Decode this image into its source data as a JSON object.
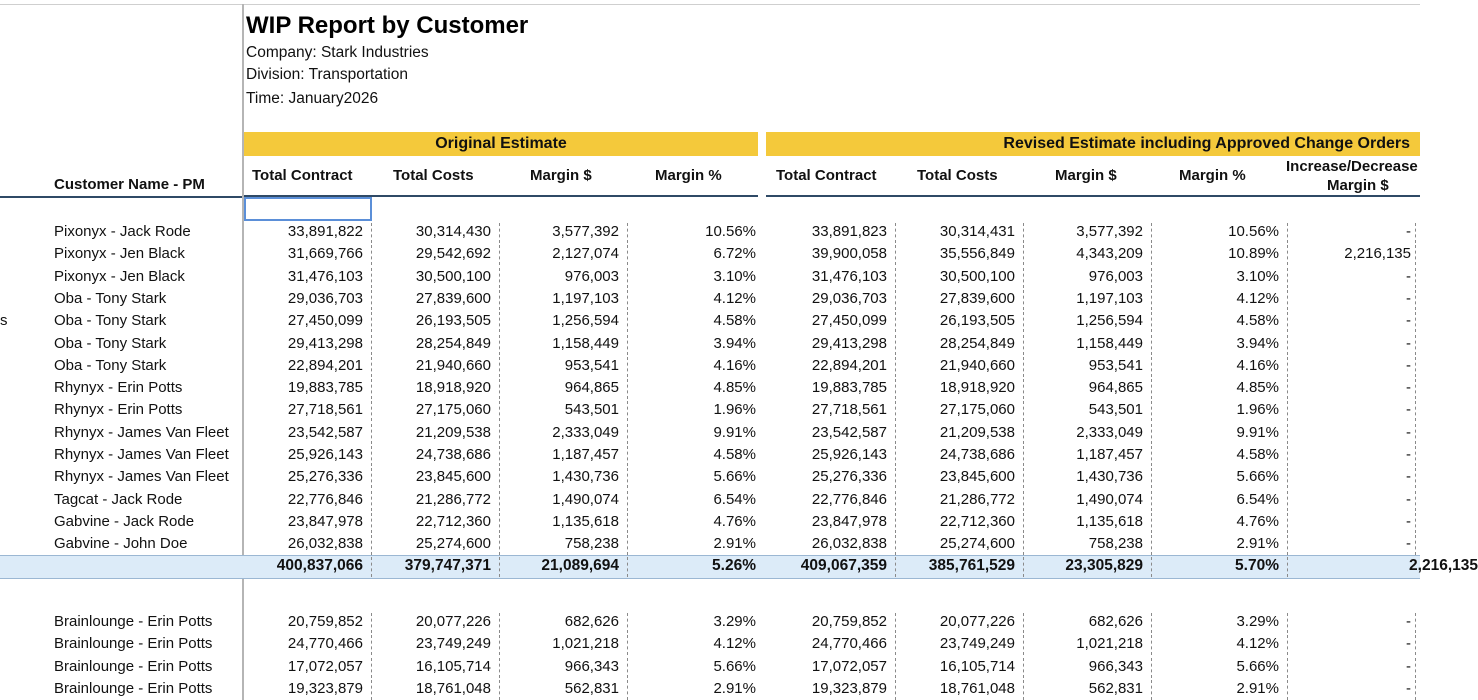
{
  "report": {
    "title": "WIP Report by Customer",
    "company": "Company: Stark Industries",
    "division": "Division: Transportation",
    "time": "Time: January2026"
  },
  "headers": {
    "group_original": "Original Estimate",
    "group_revised": "Revised Estimate including Approved Change Orders",
    "customer_name": "Customer Name - PM",
    "total_contract": "Total Contract",
    "total_costs": "Total Costs",
    "margin_dollar": "Margin $",
    "margin_pct": "Margin %",
    "increase_line1": "Increase/Decrease",
    "increase_line2": "Margin $"
  },
  "left_edge_fragment": "s",
  "group1_rows": [
    {
      "name": "Pixonyx - Jack Rode",
      "o_contract": "33,891,822",
      "o_costs": "30,314,430",
      "o_margin": "3,577,392",
      "o_pct": "10.56%",
      "r_contract": "33,891,823",
      "r_costs": "30,314,431",
      "r_margin": "3,577,392",
      "r_pct": "10.56%",
      "inc": "-"
    },
    {
      "name": "Pixonyx - Jen Black",
      "o_contract": "31,669,766",
      "o_costs": "29,542,692",
      "o_margin": "2,127,074",
      "o_pct": "6.72%",
      "r_contract": "39,900,058",
      "r_costs": "35,556,849",
      "r_margin": "4,343,209",
      "r_pct": "10.89%",
      "inc": "2,216,135"
    },
    {
      "name": "Pixonyx - Jen Black",
      "o_contract": "31,476,103",
      "o_costs": "30,500,100",
      "o_margin": "976,003",
      "o_pct": "3.10%",
      "r_contract": "31,476,103",
      "r_costs": "30,500,100",
      "r_margin": "976,003",
      "r_pct": "3.10%",
      "inc": "-"
    },
    {
      "name": "Oba - Tony Stark",
      "o_contract": "29,036,703",
      "o_costs": "27,839,600",
      "o_margin": "1,197,103",
      "o_pct": "4.12%",
      "r_contract": "29,036,703",
      "r_costs": "27,839,600",
      "r_margin": "1,197,103",
      "r_pct": "4.12%",
      "inc": "-"
    },
    {
      "name": "Oba - Tony Stark",
      "o_contract": "27,450,099",
      "o_costs": "26,193,505",
      "o_margin": "1,256,594",
      "o_pct": "4.58%",
      "r_contract": "27,450,099",
      "r_costs": "26,193,505",
      "r_margin": "1,256,594",
      "r_pct": "4.58%",
      "inc": "-"
    },
    {
      "name": "Oba - Tony Stark",
      "o_contract": "29,413,298",
      "o_costs": "28,254,849",
      "o_margin": "1,158,449",
      "o_pct": "3.94%",
      "r_contract": "29,413,298",
      "r_costs": "28,254,849",
      "r_margin": "1,158,449",
      "r_pct": "3.94%",
      "inc": "-"
    },
    {
      "name": "Oba - Tony Stark",
      "o_contract": "22,894,201",
      "o_costs": "21,940,660",
      "o_margin": "953,541",
      "o_pct": "4.16%",
      "r_contract": "22,894,201",
      "r_costs": "21,940,660",
      "r_margin": "953,541",
      "r_pct": "4.16%",
      "inc": "-"
    },
    {
      "name": "Rhynyx - Erin Potts",
      "o_contract": "19,883,785",
      "o_costs": "18,918,920",
      "o_margin": "964,865",
      "o_pct": "4.85%",
      "r_contract": "19,883,785",
      "r_costs": "18,918,920",
      "r_margin": "964,865",
      "r_pct": "4.85%",
      "inc": "-"
    },
    {
      "name": "Rhynyx - Erin Potts",
      "o_contract": "27,718,561",
      "o_costs": "27,175,060",
      "o_margin": "543,501",
      "o_pct": "1.96%",
      "r_contract": "27,718,561",
      "r_costs": "27,175,060",
      "r_margin": "543,501",
      "r_pct": "1.96%",
      "inc": "-"
    },
    {
      "name": "Rhynyx - James Van Fleet",
      "o_contract": "23,542,587",
      "o_costs": "21,209,538",
      "o_margin": "2,333,049",
      "o_pct": "9.91%",
      "r_contract": "23,542,587",
      "r_costs": "21,209,538",
      "r_margin": "2,333,049",
      "r_pct": "9.91%",
      "inc": "-"
    },
    {
      "name": "Rhynyx - James Van Fleet",
      "o_contract": "25,926,143",
      "o_costs": "24,738,686",
      "o_margin": "1,187,457",
      "o_pct": "4.58%",
      "r_contract": "25,926,143",
      "r_costs": "24,738,686",
      "r_margin": "1,187,457",
      "r_pct": "4.58%",
      "inc": "-"
    },
    {
      "name": "Rhynyx - James Van Fleet",
      "o_contract": "25,276,336",
      "o_costs": "23,845,600",
      "o_margin": "1,430,736",
      "o_pct": "5.66%",
      "r_contract": "25,276,336",
      "r_costs": "23,845,600",
      "r_margin": "1,430,736",
      "r_pct": "5.66%",
      "inc": "-"
    },
    {
      "name": "Tagcat - Jack Rode",
      "o_contract": "22,776,846",
      "o_costs": "21,286,772",
      "o_margin": "1,490,074",
      "o_pct": "6.54%",
      "r_contract": "22,776,846",
      "r_costs": "21,286,772",
      "r_margin": "1,490,074",
      "r_pct": "6.54%",
      "inc": "-"
    },
    {
      "name": "Gabvine - Jack Rode",
      "o_contract": "23,847,978",
      "o_costs": "22,712,360",
      "o_margin": "1,135,618",
      "o_pct": "4.76%",
      "r_contract": "23,847,978",
      "r_costs": "22,712,360",
      "r_margin": "1,135,618",
      "r_pct": "4.76%",
      "inc": "-"
    },
    {
      "name": "Gabvine - John Doe",
      "o_contract": "26,032,838",
      "o_costs": "25,274,600",
      "o_margin": "758,238",
      "o_pct": "2.91%",
      "r_contract": "26,032,838",
      "r_costs": "25,274,600",
      "r_margin": "758,238",
      "r_pct": "2.91%",
      "inc": "-"
    }
  ],
  "group1_total": {
    "o_contract": "400,837,066",
    "o_costs": "379,747,371",
    "o_margin": "21,089,694",
    "o_pct": "5.26%",
    "r_contract": "409,067,359",
    "r_costs": "385,761,529",
    "r_margin": "23,305,829",
    "r_pct": "5.70%",
    "inc": "2,216,135"
  },
  "group2_rows": [
    {
      "name": "Brainlounge - Erin Potts",
      "o_contract": "20,759,852",
      "o_costs": "20,077,226",
      "o_margin": "682,626",
      "o_pct": "3.29%",
      "r_contract": "20,759,852",
      "r_costs": "20,077,226",
      "r_margin": "682,626",
      "r_pct": "3.29%",
      "inc": "-"
    },
    {
      "name": "Brainlounge - Erin Potts",
      "o_contract": "24,770,466",
      "o_costs": "23,749,249",
      "o_margin": "1,021,218",
      "o_pct": "4.12%",
      "r_contract": "24,770,466",
      "r_costs": "23,749,249",
      "r_margin": "1,021,218",
      "r_pct": "4.12%",
      "inc": "-"
    },
    {
      "name": "Brainlounge - Erin Potts",
      "o_contract": "17,072,057",
      "o_costs": "16,105,714",
      "o_margin": "966,343",
      "o_pct": "5.66%",
      "r_contract": "17,072,057",
      "r_costs": "16,105,714",
      "r_margin": "966,343",
      "r_pct": "5.66%",
      "inc": "-"
    },
    {
      "name": "Brainlounge - Erin Potts",
      "o_contract": "19,323,879",
      "o_costs": "18,761,048",
      "o_margin": "562,831",
      "o_pct": "2.91%",
      "r_contract": "19,323,879",
      "r_costs": "18,761,048",
      "r_margin": "562,831",
      "r_pct": "2.91%",
      "inc": "-"
    }
  ]
}
